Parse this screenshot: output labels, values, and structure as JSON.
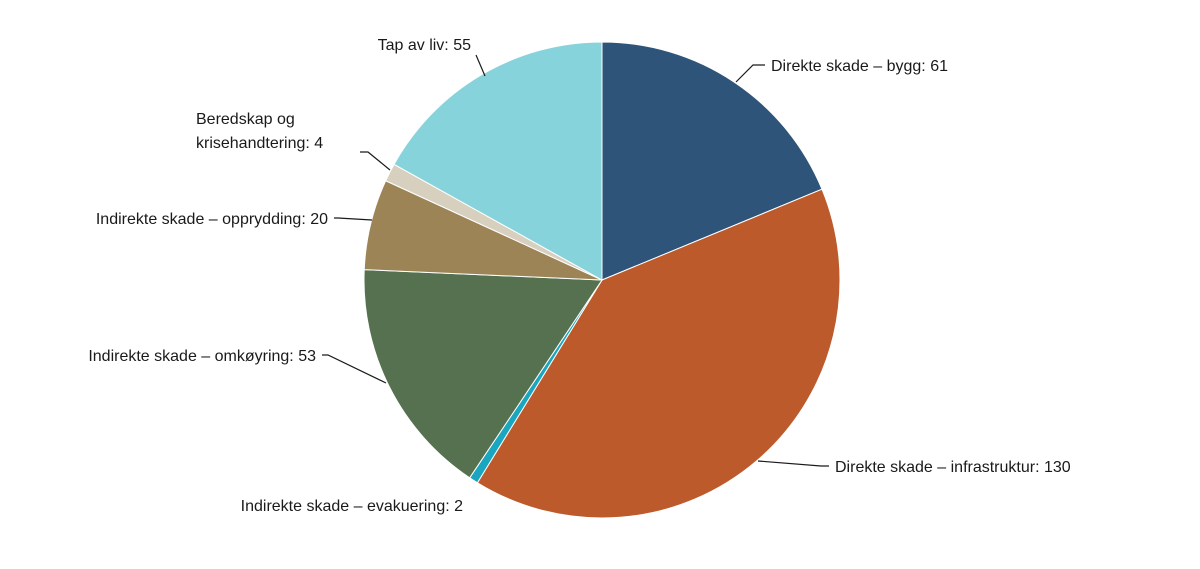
{
  "chart_data": {
    "type": "pie",
    "title": "",
    "slices": [
      {
        "key": "bygg",
        "label": "Direkte skade – bygg: 61",
        "value": 61,
        "color": "#2f5479"
      },
      {
        "key": "infrastruktur",
        "label": "Direkte skade – infrastruktur: 130",
        "value": 130,
        "color": "#bc5a2b"
      },
      {
        "key": "evakuering",
        "label": "Indirekte skade – evakuering: 2",
        "value": 2,
        "color": "#1aa6bf"
      },
      {
        "key": "omkjoring",
        "label": "Indirekte skade – omkøyring: 53",
        "value": 53,
        "color": "#55714f"
      },
      {
        "key": "opprydding",
        "label": "Indirekte skade – opprydding: 20",
        "value": 20,
        "color": "#9d8456"
      },
      {
        "key": "beredskap",
        "label": "Beredskap og krisehandtering: 4",
        "label_lines": [
          "Beredskap og",
          "krisehandtering: 4"
        ],
        "value": 4,
        "color": "#d8d0bf"
      },
      {
        "key": "tap-av-liv",
        "label": "Tap av liv: 55",
        "value": 55,
        "color": "#87d3dc"
      }
    ]
  }
}
